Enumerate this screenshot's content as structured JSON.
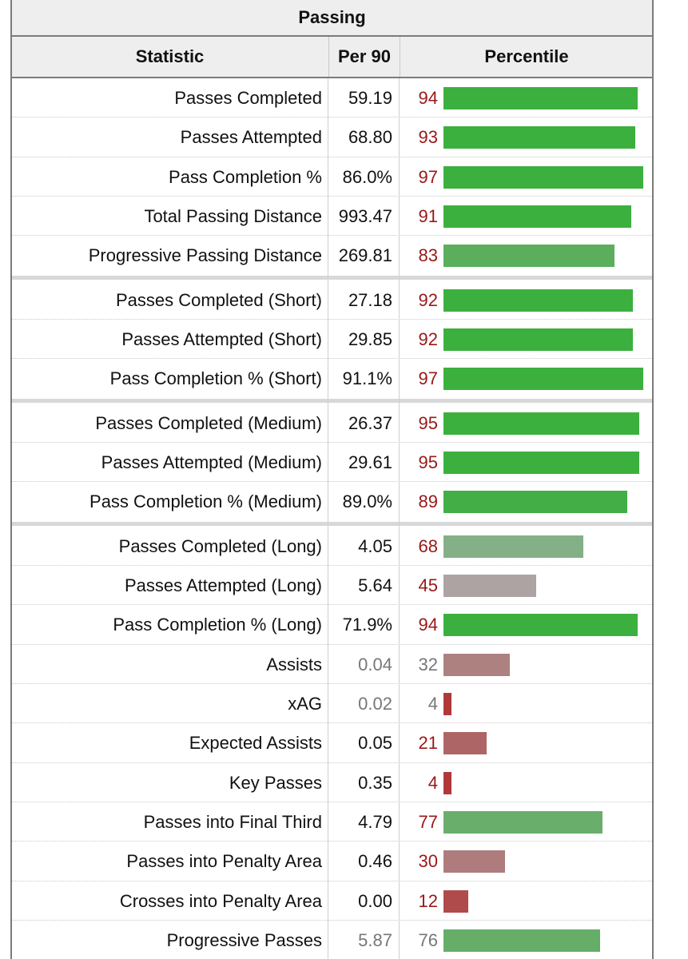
{
  "table": {
    "caption": "Passing",
    "headers": {
      "statistic": "Statistic",
      "per90": "Per 90",
      "percentile": "Percentile"
    }
  },
  "chart_data": {
    "type": "bar",
    "title": "Passing",
    "xlabel": "Percentile",
    "ylabel": "Statistic",
    "xlim": [
      0,
      100
    ],
    "groups": [
      [
        {
          "stat": "Passes Completed",
          "per90": "59.19",
          "percentile": 94,
          "color": "#3bb03e"
        },
        {
          "stat": "Passes Attempted",
          "per90": "68.80",
          "percentile": 93,
          "color": "#3bb03e"
        },
        {
          "stat": "Pass Completion %",
          "per90": "86.0%",
          "percentile": 97,
          "color": "#3bb03e"
        },
        {
          "stat": "Total Passing Distance",
          "per90": "993.47",
          "percentile": 91,
          "color": "#3bb03e"
        },
        {
          "stat": "Progressive Passing Distance",
          "per90": "269.81",
          "percentile": 83,
          "color": "#5aae5c"
        }
      ],
      [
        {
          "stat": "Passes Completed (Short)",
          "per90": "27.18",
          "percentile": 92,
          "color": "#3bb03e"
        },
        {
          "stat": "Passes Attempted (Short)",
          "per90": "29.85",
          "percentile": 92,
          "color": "#3bb03e"
        },
        {
          "stat": "Pass Completion % (Short)",
          "per90": "91.1%",
          "percentile": 97,
          "color": "#3bb03e"
        }
      ],
      [
        {
          "stat": "Passes Completed (Medium)",
          "per90": "26.37",
          "percentile": 95,
          "color": "#3bb03e"
        },
        {
          "stat": "Passes Attempted (Medium)",
          "per90": "29.61",
          "percentile": 95,
          "color": "#3bb03e"
        },
        {
          "stat": "Pass Completion % (Medium)",
          "per90": "89.0%",
          "percentile": 89,
          "color": "#42ae45"
        }
      ],
      [
        {
          "stat": "Passes Completed (Long)",
          "per90": "4.05",
          "percentile": 68,
          "color": "#83b086"
        },
        {
          "stat": "Passes Attempted (Long)",
          "per90": "5.64",
          "percentile": 45,
          "color": "#aea3a3"
        },
        {
          "stat": "Pass Completion % (Long)",
          "per90": "71.9%",
          "percentile": 94,
          "color": "#3bb03e"
        },
        {
          "stat": "Assists",
          "per90": "0.04",
          "percentile": 32,
          "color": "#ae8181",
          "muted": true
        },
        {
          "stat": "xAG",
          "per90": "0.02",
          "percentile": 4,
          "color": "#b03a3a",
          "muted": true
        },
        {
          "stat": "Expected Assists",
          "per90": "0.05",
          "percentile": 21,
          "color": "#ae6565"
        },
        {
          "stat": "Key Passes",
          "per90": "0.35",
          "percentile": 4,
          "color": "#b03a3a"
        },
        {
          "stat": "Passes into Final Third",
          "per90": "4.79",
          "percentile": 77,
          "color": "#6aae6c"
        },
        {
          "stat": "Passes into Penalty Area",
          "per90": "0.46",
          "percentile": 30,
          "color": "#ae7c7c"
        },
        {
          "stat": "Crosses into Penalty Area",
          "per90": "0.00",
          "percentile": 12,
          "color": "#af4b4b"
        },
        {
          "stat": "Progressive Passes",
          "per90": "5.87",
          "percentile": 76,
          "color": "#66ad68",
          "muted": true
        }
      ]
    ]
  }
}
